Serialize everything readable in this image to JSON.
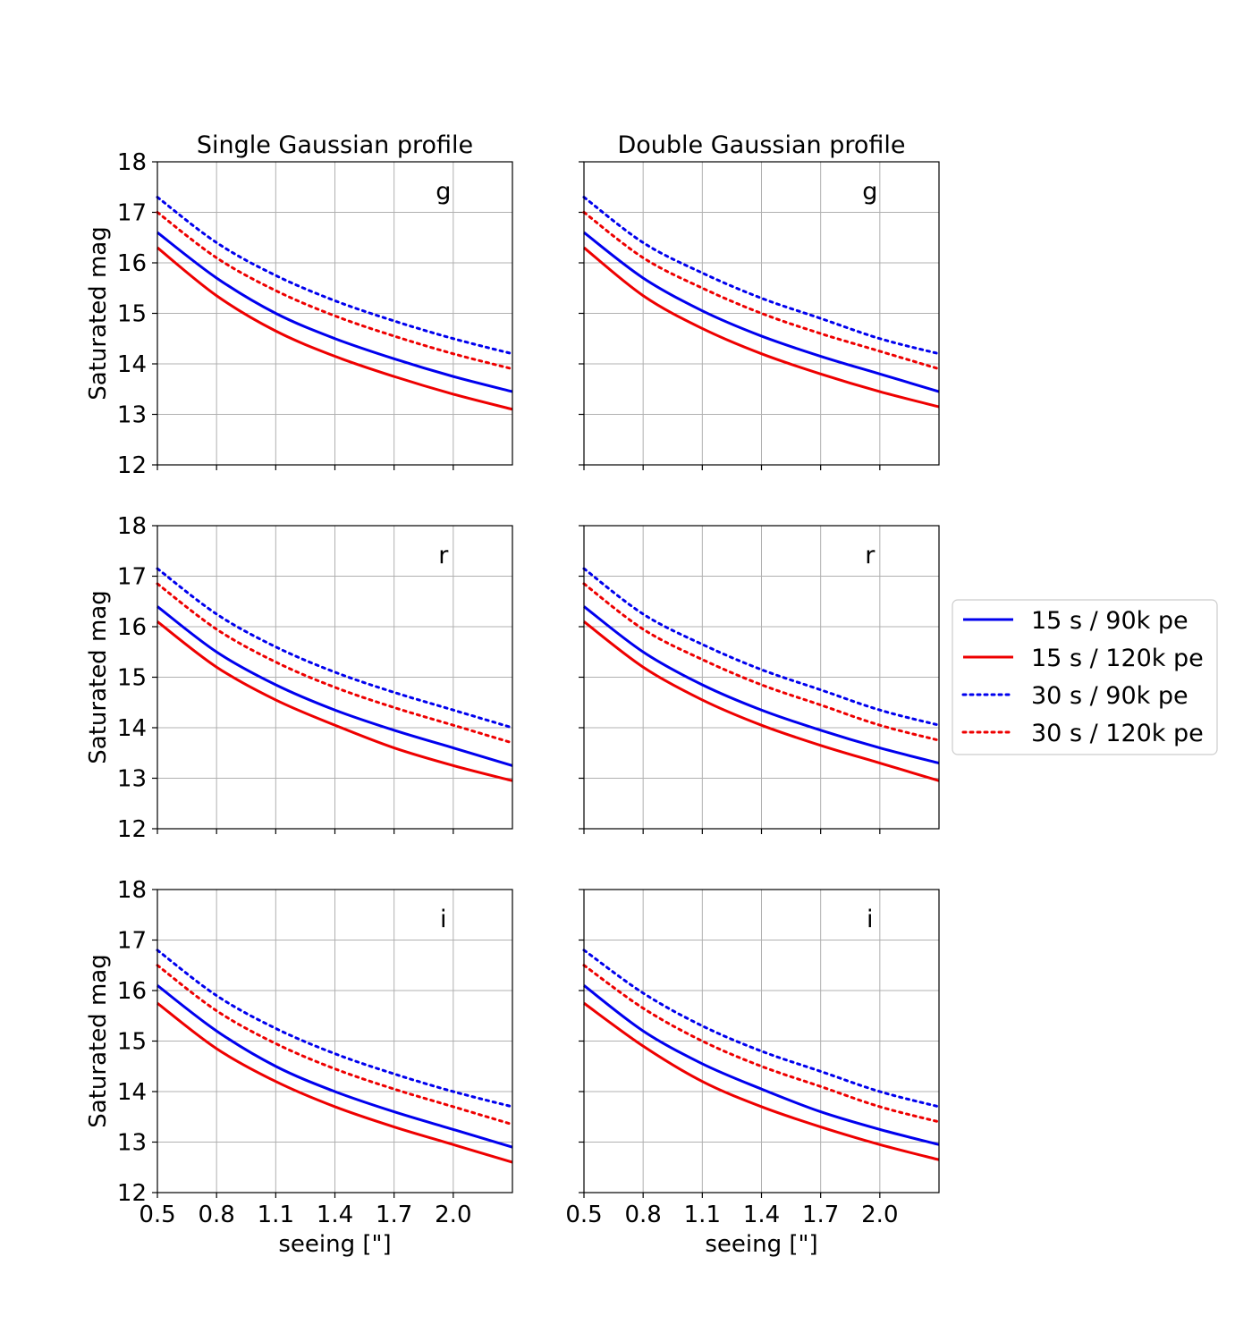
{
  "figure": {
    "column_titles": [
      "Single Gaussian profile",
      "Double Gaussian profile"
    ],
    "row_labels": [
      "g",
      "r",
      "i"
    ],
    "ylabel": "Saturated mag",
    "xlabel": "seeing [\"]",
    "legend": {
      "placement": "right-center",
      "entries": [
        {
          "label": "15 s / 90k pe",
          "color": "#0000ee",
          "style": "solid"
        },
        {
          "label": "15 s / 120k pe",
          "color": "#ee0000",
          "style": "solid"
        },
        {
          "label": "30 s / 90k pe",
          "color": "#0000ee",
          "style": "dotted"
        },
        {
          "label": "30 s / 120k pe",
          "color": "#ee0000",
          "style": "dotted"
        }
      ]
    }
  },
  "chart_data": [
    {
      "type": "line",
      "panel": "Single Gaussian profile / g",
      "band": "g",
      "xlim": [
        0.5,
        2.3
      ],
      "ylim": [
        12,
        18
      ],
      "xticks": [
        "0.5",
        "0.8",
        "1.1",
        "1.4",
        "1.7",
        "2.0"
      ],
      "yticks": [
        "12",
        "13",
        "14",
        "15",
        "16",
        "17",
        "18"
      ],
      "grid": true,
      "x": [
        0.5,
        0.8,
        1.1,
        1.4,
        1.7,
        2.0,
        2.3
      ],
      "series": [
        {
          "name": "15 s / 90k pe",
          "values": [
            16.6,
            15.7,
            15.0,
            14.5,
            14.1,
            13.75,
            13.45
          ]
        },
        {
          "name": "15 s / 120k pe",
          "values": [
            16.3,
            15.35,
            14.65,
            14.15,
            13.75,
            13.4,
            13.1
          ]
        },
        {
          "name": "30 s / 90k pe",
          "values": [
            17.3,
            16.4,
            15.75,
            15.25,
            14.85,
            14.5,
            14.2
          ]
        },
        {
          "name": "30 s / 120k pe",
          "values": [
            17.0,
            16.1,
            15.45,
            14.95,
            14.55,
            14.2,
            13.9
          ]
        }
      ]
    },
    {
      "type": "line",
      "panel": "Double Gaussian profile / g",
      "band": "g",
      "xlim": [
        0.5,
        2.3
      ],
      "ylim": [
        12,
        18
      ],
      "xticks": [
        "0.5",
        "0.8",
        "1.1",
        "1.4",
        "1.7",
        "2.0"
      ],
      "yticks": [
        "12",
        "13",
        "14",
        "15",
        "16",
        "17",
        "18"
      ],
      "grid": true,
      "x": [
        0.5,
        0.8,
        1.1,
        1.4,
        1.7,
        2.0,
        2.3
      ],
      "series": [
        {
          "name": "15 s / 90k pe",
          "values": [
            16.6,
            15.7,
            15.05,
            14.55,
            14.15,
            13.8,
            13.45
          ]
        },
        {
          "name": "15 s / 120k pe",
          "values": [
            16.3,
            15.35,
            14.7,
            14.2,
            13.8,
            13.45,
            13.15
          ]
        },
        {
          "name": "30 s / 90k pe",
          "values": [
            17.3,
            16.4,
            15.8,
            15.3,
            14.9,
            14.5,
            14.2
          ]
        },
        {
          "name": "30 s / 120k pe",
          "values": [
            17.0,
            16.1,
            15.5,
            15.0,
            14.6,
            14.25,
            13.9
          ]
        }
      ]
    },
    {
      "type": "line",
      "panel": "Single Gaussian profile / r",
      "band": "r",
      "xlim": [
        0.5,
        2.3
      ],
      "ylim": [
        12,
        18
      ],
      "xticks": [
        "0.5",
        "0.8",
        "1.1",
        "1.4",
        "1.7",
        "2.0"
      ],
      "yticks": [
        "12",
        "13",
        "14",
        "15",
        "16",
        "17",
        "18"
      ],
      "grid": true,
      "x": [
        0.5,
        0.8,
        1.1,
        1.4,
        1.7,
        2.0,
        2.3
      ],
      "series": [
        {
          "name": "15 s / 90k pe",
          "values": [
            16.4,
            15.5,
            14.85,
            14.35,
            13.95,
            13.6,
            13.25
          ]
        },
        {
          "name": "15 s / 120k pe",
          "values": [
            16.1,
            15.2,
            14.55,
            14.05,
            13.6,
            13.25,
            12.95
          ]
        },
        {
          "name": "30 s / 90k pe",
          "values": [
            17.15,
            16.25,
            15.6,
            15.1,
            14.7,
            14.35,
            14.0
          ]
        },
        {
          "name": "30 s / 120k pe",
          "values": [
            16.85,
            15.95,
            15.3,
            14.8,
            14.4,
            14.05,
            13.7
          ]
        }
      ]
    },
    {
      "type": "line",
      "panel": "Double Gaussian profile / r",
      "band": "r",
      "xlim": [
        0.5,
        2.3
      ],
      "ylim": [
        12,
        18
      ],
      "xticks": [
        "0.5",
        "0.8",
        "1.1",
        "1.4",
        "1.7",
        "2.0"
      ],
      "yticks": [
        "12",
        "13",
        "14",
        "15",
        "16",
        "17",
        "18"
      ],
      "grid": true,
      "x": [
        0.5,
        0.8,
        1.1,
        1.4,
        1.7,
        2.0,
        2.3
      ],
      "series": [
        {
          "name": "15 s / 90k pe",
          "values": [
            16.4,
            15.5,
            14.85,
            14.35,
            13.95,
            13.6,
            13.3
          ]
        },
        {
          "name": "15 s / 120k pe",
          "values": [
            16.1,
            15.2,
            14.55,
            14.05,
            13.65,
            13.3,
            12.95
          ]
        },
        {
          "name": "30 s / 90k pe",
          "values": [
            17.15,
            16.25,
            15.65,
            15.15,
            14.75,
            14.35,
            14.05
          ]
        },
        {
          "name": "30 s / 120k pe",
          "values": [
            16.85,
            15.95,
            15.35,
            14.85,
            14.45,
            14.05,
            13.75
          ]
        }
      ]
    },
    {
      "type": "line",
      "panel": "Single Gaussian profile / i",
      "band": "i",
      "xlim": [
        0.5,
        2.3
      ],
      "ylim": [
        12,
        18
      ],
      "xticks": [
        "0.5",
        "0.8",
        "1.1",
        "1.4",
        "1.7",
        "2.0"
      ],
      "yticks": [
        "12",
        "13",
        "14",
        "15",
        "16",
        "17",
        "18"
      ],
      "grid": true,
      "x": [
        0.5,
        0.8,
        1.1,
        1.4,
        1.7,
        2.0,
        2.3
      ],
      "series": [
        {
          "name": "15 s / 90k pe",
          "values": [
            16.1,
            15.2,
            14.5,
            14.0,
            13.6,
            13.25,
            12.9
          ]
        },
        {
          "name": "15 s / 120k pe",
          "values": [
            15.75,
            14.85,
            14.2,
            13.7,
            13.3,
            12.95,
            12.6
          ]
        },
        {
          "name": "30 s / 90k pe",
          "values": [
            16.8,
            15.9,
            15.25,
            14.75,
            14.35,
            14.0,
            13.7
          ]
        },
        {
          "name": "30 s / 120k pe",
          "values": [
            16.5,
            15.6,
            14.95,
            14.45,
            14.05,
            13.7,
            13.35
          ]
        }
      ]
    },
    {
      "type": "line",
      "panel": "Double Gaussian profile / i",
      "band": "i",
      "xlim": [
        0.5,
        2.3
      ],
      "ylim": [
        12,
        18
      ],
      "xticks": [
        "0.5",
        "0.8",
        "1.1",
        "1.4",
        "1.7",
        "2.0"
      ],
      "yticks": [
        "12",
        "13",
        "14",
        "15",
        "16",
        "17",
        "18"
      ],
      "grid": true,
      "x": [
        0.5,
        0.8,
        1.1,
        1.4,
        1.7,
        2.0,
        2.3
      ],
      "series": [
        {
          "name": "15 s / 90k pe",
          "values": [
            16.1,
            15.2,
            14.55,
            14.05,
            13.6,
            13.25,
            12.95
          ]
        },
        {
          "name": "15 s / 120k pe",
          "values": [
            15.75,
            14.9,
            14.2,
            13.7,
            13.3,
            12.95,
            12.65
          ]
        },
        {
          "name": "30 s / 90k pe",
          "values": [
            16.8,
            15.95,
            15.3,
            14.8,
            14.4,
            14.0,
            13.7
          ]
        },
        {
          "name": "30 s / 120k pe",
          "values": [
            16.5,
            15.65,
            15.0,
            14.5,
            14.1,
            13.7,
            13.4
          ]
        }
      ]
    }
  ]
}
